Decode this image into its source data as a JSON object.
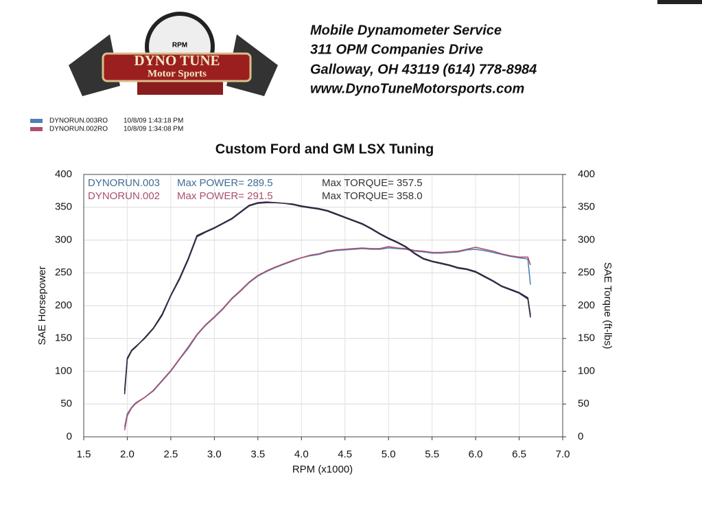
{
  "header": {
    "logo_gauge": "RPM",
    "logo_title": "DYNO TUNE",
    "logo_subtitle": "Motor Sports",
    "lines": [
      "Mobile Dynamometer Service",
      "311 OPM Companies Drive",
      "Galloway, OH  43119   (614)  778-8984",
      "www.DynoTuneMotorsports.com"
    ]
  },
  "chart_data": {
    "type": "line",
    "title": "Custom Ford and GM LSX Tuning",
    "x_label": "RPM (x1000)",
    "y_label": "SAE Horsepower",
    "y2_label": "SAE Torque (ft-lbs)",
    "xlim": [
      1.5,
      7.0
    ],
    "xticks": [
      1.5,
      {
        "value": 2,
        "label": "2.0"
      },
      2.5,
      {
        "value": 3,
        "label": "3.0"
      },
      3.5,
      {
        "value": 4,
        "label": "4.0"
      },
      4.5,
      {
        "value": 5,
        "label": "5.0"
      },
      5.5,
      {
        "value": 6,
        "label": "6.0"
      },
      6.5,
      {
        "value": 7,
        "label": "7.0"
      }
    ],
    "ylim": [
      0,
      400
    ],
    "yticks": [
      0,
      50,
      100,
      150,
      200,
      250,
      300,
      350,
      400
    ],
    "y2lim": [
      0,
      400
    ],
    "y2ticks": [
      0,
      50,
      100,
      150,
      200,
      250,
      300,
      350,
      400
    ],
    "grid": true,
    "annotations": [
      {
        "run": "DYNORUN.003",
        "power": "Max POWER= 289.5",
        "torque": "Max TORQUE= 357.5",
        "color": "#3f6c94"
      },
      {
        "run": "DYNORUN.002",
        "power": "Max POWER= 291.5",
        "torque": "Max TORQUE= 358.0",
        "color": "#a8506a"
      }
    ],
    "x": [
      1.97,
      2.0,
      2.05,
      2.1,
      2.2,
      2.3,
      2.4,
      2.5,
      2.6,
      2.7,
      2.8,
      2.9,
      3.0,
      3.1,
      3.2,
      3.3,
      3.4,
      3.5,
      3.6,
      3.7,
      3.8,
      3.9,
      4.0,
      4.1,
      4.2,
      4.3,
      4.4,
      4.5,
      4.6,
      4.7,
      4.8,
      4.9,
      5.0,
      5.1,
      5.2,
      5.3,
      5.4,
      5.5,
      5.6,
      5.7,
      5.8,
      5.9,
      6.0,
      6.1,
      6.2,
      6.3,
      6.4,
      6.5,
      6.6,
      6.63
    ],
    "series": [
      {
        "name": "DYNORUN.003RO",
        "timestamp": "10/8/09 1:43:18 PM",
        "color": "#4f7fb8",
        "values": [
          15,
          35,
          45,
          52,
          60,
          70,
          85,
          100,
          118,
          135,
          155,
          170,
          182,
          195,
          210,
          222,
          235,
          245,
          252,
          258,
          263,
          268,
          273,
          276,
          278,
          282,
          284,
          285,
          286,
          287,
          286,
          286,
          288,
          287,
          286,
          283,
          282,
          280,
          280,
          281,
          282,
          285,
          286,
          284,
          281,
          278,
          275,
          273,
          271,
          232
        ]
      },
      {
        "name": "DYNORUN.002RO",
        "timestamp": "10/8/09 1:34:08 PM",
        "color": "#b0506a",
        "values": [
          10,
          32,
          44,
          51,
          60,
          71,
          86,
          101,
          119,
          137,
          156,
          171,
          183,
          196,
          211,
          223,
          236,
          246,
          253,
          259,
          264,
          269,
          273,
          277,
          279,
          283,
          285,
          286,
          287,
          288,
          287,
          287,
          290,
          288,
          287,
          284,
          283,
          281,
          281,
          282,
          283,
          286,
          289,
          286,
          283,
          279,
          276,
          274,
          274,
          262
        ]
      },
      {
        "color": "#1f2a44",
        "axis": "y2",
        "values": [
          70,
          120,
          132,
          138,
          150,
          165,
          185,
          215,
          240,
          270,
          305,
          312,
          318,
          325,
          332,
          342,
          352,
          356,
          357,
          357,
          356,
          355,
          352,
          350,
          348,
          345,
          340,
          335,
          330,
          325,
          318,
          310,
          303,
          297,
          290,
          280,
          272,
          268,
          265,
          262,
          258,
          256,
          252,
          245,
          238,
          230,
          225,
          220,
          212,
          185
        ]
      },
      {
        "color": "#3a2a40",
        "axis": "y2",
        "values": [
          65,
          118,
          131,
          137,
          151,
          166,
          187,
          216,
          242,
          272,
          307,
          313,
          319,
          326,
          333,
          343,
          353,
          357,
          358,
          357,
          356,
          354,
          351,
          349,
          347,
          344,
          339,
          334,
          329,
          324,
          317,
          309,
          302,
          296,
          289,
          279,
          271,
          267,
          264,
          261,
          257,
          255,
          251,
          244,
          237,
          229,
          224,
          219,
          210,
          182
        ]
      }
    ]
  }
}
